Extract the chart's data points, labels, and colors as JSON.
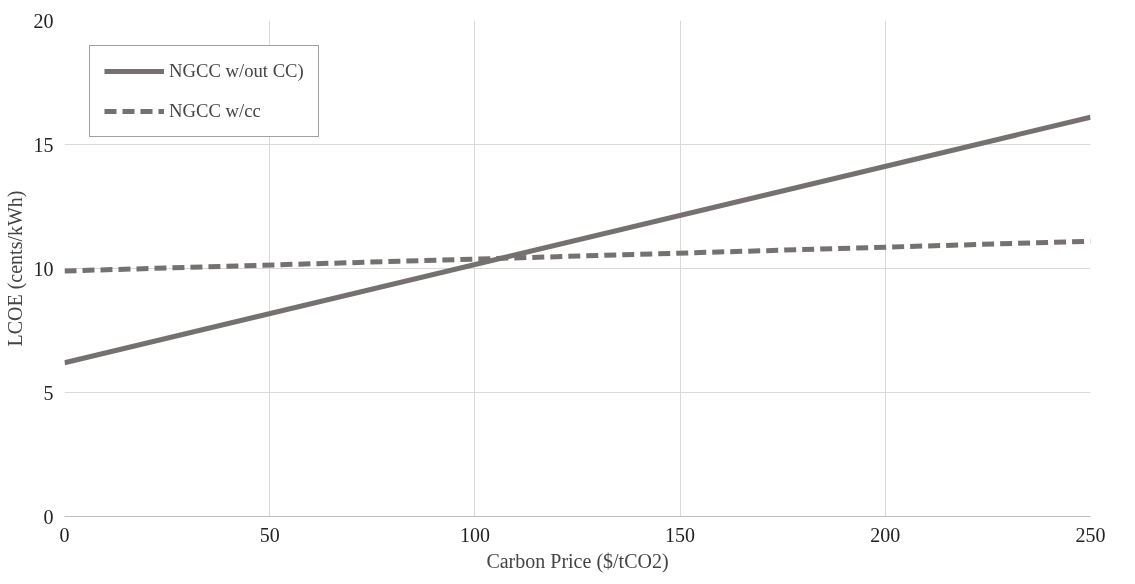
{
  "chart_data": {
    "type": "line",
    "xlabel": "Carbon Price ($/tCO2)",
    "ylabel": "LCOE (cents/kWh)",
    "x": [
      0,
      250
    ],
    "series": [
      {
        "name": "NGCC w/out CC)",
        "color": "#767171",
        "values": [
          6.2,
          16.1
        ],
        "line_style": "solid"
      },
      {
        "name": "NGCC w/cc",
        "color": "#767171",
        "values": [
          9.9,
          11.1
        ],
        "line_style": "dashed"
      }
    ],
    "xlim": [
      0,
      250
    ],
    "xticks": [
      0,
      50,
      100,
      150,
      200,
      250
    ],
    "ylim": [
      0,
      20
    ],
    "yticks": [
      0,
      5,
      10,
      15,
      20
    ],
    "grid": true,
    "legend": "top left",
    "marker": "none"
  }
}
